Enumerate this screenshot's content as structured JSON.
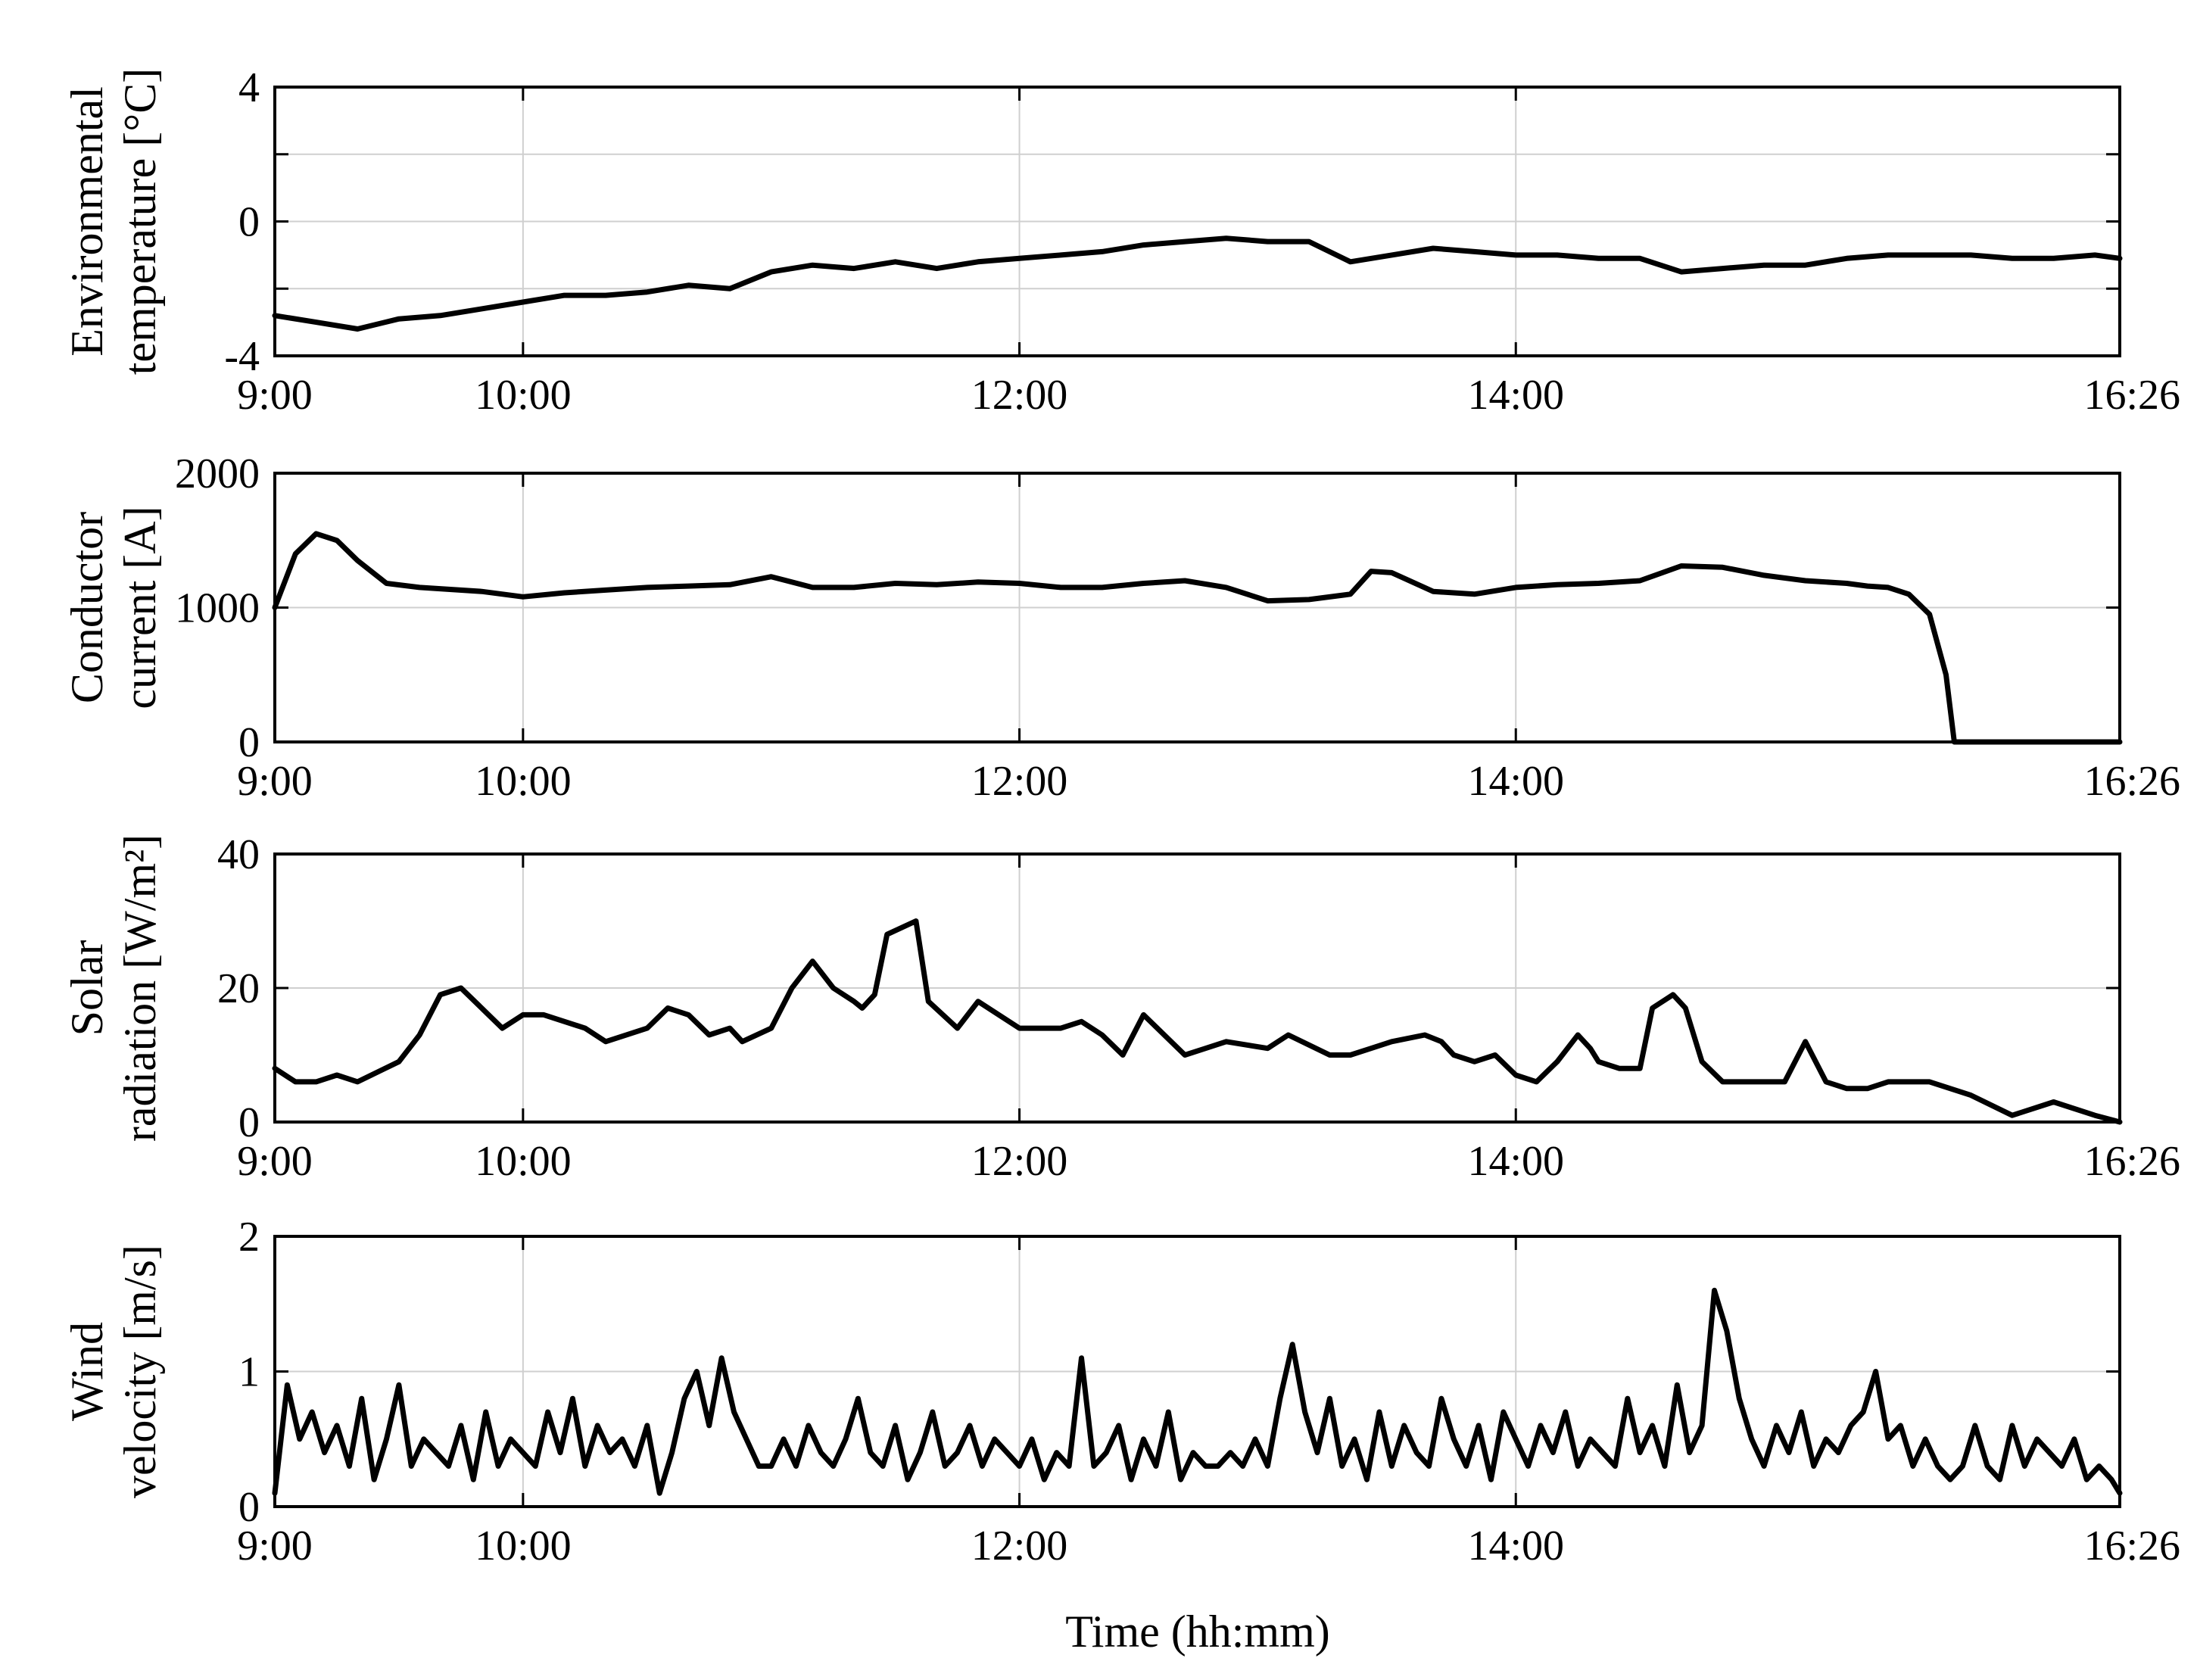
{
  "x_axis_label": "Time (hh:mm)",
  "chart_data": [
    {
      "type": "line",
      "ylabel_lines": [
        "Environmental",
        "temperature [°C]"
      ],
      "ylim": [
        -4,
        4
      ],
      "yticks": [
        -4,
        0,
        4
      ],
      "ygrid": [
        -4,
        -2,
        0,
        2,
        4
      ],
      "xtick_labels": [
        "9:00",
        "10:00",
        "12:00",
        "14:00",
        "16:26"
      ],
      "xticks_min": [
        0,
        60,
        180,
        300,
        446
      ],
      "grid": true,
      "series": [
        {
          "x": [
            0,
            10,
            20,
            30,
            40,
            50,
            60,
            70,
            80,
            90,
            100,
            110,
            120,
            130,
            140,
            150,
            160,
            170,
            180,
            190,
            200,
            210,
            220,
            230,
            240,
            250,
            260,
            270,
            280,
            290,
            300,
            310,
            320,
            330,
            340,
            350,
            360,
            370,
            380,
            390,
            400,
            410,
            420,
            430,
            440,
            446
          ],
          "y": [
            -2.8,
            -3.0,
            -3.2,
            -2.9,
            -2.8,
            -2.6,
            -2.4,
            -2.2,
            -2.2,
            -2.1,
            -1.9,
            -2.0,
            -1.5,
            -1.3,
            -1.4,
            -1.2,
            -1.4,
            -1.2,
            -1.1,
            -1.0,
            -0.9,
            -0.7,
            -0.6,
            -0.5,
            -0.6,
            -0.6,
            -1.2,
            -1.0,
            -0.8,
            -0.9,
            -1.0,
            -1.0,
            -1.1,
            -1.1,
            -1.5,
            -1.4,
            -1.3,
            -1.3,
            -1.1,
            -1.0,
            -1.0,
            -1.0,
            -1.1,
            -1.1,
            -1.0,
            -1.1
          ]
        }
      ]
    },
    {
      "type": "line",
      "ylabel_lines": [
        "Conductor",
        "current [A]"
      ],
      "ylim": [
        0,
        2000
      ],
      "yticks": [
        0,
        1000,
        2000
      ],
      "ygrid": [
        0,
        1000,
        2000
      ],
      "xtick_labels": [
        "9:00",
        "10:00",
        "12:00",
        "14:00",
        "16:26"
      ],
      "xticks_min": [
        0,
        60,
        180,
        300,
        446
      ],
      "grid": true,
      "series": [
        {
          "x": [
            0,
            5,
            10,
            15,
            20,
            27,
            35,
            50,
            60,
            70,
            80,
            90,
            100,
            110,
            120,
            130,
            140,
            150,
            160,
            170,
            180,
            190,
            200,
            210,
            220,
            230,
            240,
            250,
            260,
            265,
            270,
            280,
            290,
            300,
            310,
            320,
            330,
            340,
            350,
            360,
            370,
            380,
            385,
            390,
            395,
            400,
            404,
            406,
            420,
            446
          ],
          "y": [
            1000,
            1400,
            1550,
            1500,
            1350,
            1180,
            1150,
            1120,
            1080,
            1110,
            1130,
            1150,
            1160,
            1170,
            1230,
            1150,
            1150,
            1180,
            1170,
            1190,
            1180,
            1150,
            1150,
            1180,
            1200,
            1150,
            1050,
            1060,
            1100,
            1270,
            1260,
            1120,
            1100,
            1150,
            1170,
            1180,
            1200,
            1310,
            1300,
            1240,
            1200,
            1180,
            1160,
            1150,
            1100,
            950,
            500,
            0,
            0,
            0
          ]
        }
      ]
    },
    {
      "type": "line",
      "ylabel_lines": [
        "Solar",
        "radiation [W/m²]"
      ],
      "ylim": [
        0,
        40
      ],
      "yticks": [
        0,
        20,
        40
      ],
      "ygrid": [
        0,
        20,
        40
      ],
      "xtick_labels": [
        "9:00",
        "10:00",
        "12:00",
        "14:00",
        "16:26"
      ],
      "xticks_min": [
        0,
        60,
        180,
        300,
        446
      ],
      "grid": true,
      "series": [
        {
          "x": [
            0,
            5,
            10,
            15,
            20,
            30,
            35,
            40,
            45,
            50,
            55,
            60,
            65,
            75,
            80,
            90,
            95,
            100,
            105,
            110,
            113,
            120,
            125,
            130,
            135,
            140,
            142,
            145,
            148,
            155,
            158,
            165,
            170,
            180,
            190,
            195,
            200,
            205,
            210,
            220,
            225,
            230,
            240,
            245,
            255,
            260,
            265,
            270,
            278,
            282,
            285,
            290,
            295,
            300,
            305,
            310,
            315,
            318,
            320,
            325,
            330,
            333,
            338,
            341,
            345,
            350,
            360,
            365,
            370,
            375,
            380,
            385,
            390,
            395,
            400,
            410,
            420,
            430,
            440,
            446
          ],
          "y": [
            8,
            6,
            6,
            7,
            6,
            9,
            13,
            19,
            20,
            17,
            14,
            16,
            16,
            14,
            12,
            14,
            17,
            16,
            13,
            14,
            12,
            14,
            20,
            24,
            20,
            18,
            17,
            19,
            28,
            30,
            18,
            14,
            18,
            14,
            14,
            15,
            13,
            10,
            16,
            10,
            11,
            12,
            11,
            13,
            10,
            10,
            11,
            12,
            13,
            12,
            10,
            9,
            10,
            7,
            6,
            9,
            13,
            11,
            9,
            8,
            8,
            17,
            19,
            17,
            9,
            6,
            6,
            6,
            12,
            6,
            5,
            5,
            6,
            6,
            6,
            4,
            1,
            3,
            1,
            0
          ]
        }
      ]
    },
    {
      "type": "line",
      "ylabel_lines": [
        "Wind",
        "velocity [m/s]"
      ],
      "ylim": [
        0,
        2
      ],
      "yticks": [
        0,
        1,
        2
      ],
      "ygrid": [
        0,
        1,
        2
      ],
      "xtick_labels": [
        "9:00",
        "10:00",
        "12:00",
        "14:00",
        "16:26"
      ],
      "xticks_min": [
        0,
        60,
        180,
        300,
        446
      ],
      "grid": true,
      "series": [
        {
          "x": [
            0,
            3,
            6,
            9,
            12,
            15,
            18,
            21,
            24,
            27,
            30,
            33,
            36,
            39,
            42,
            45,
            48,
            51,
            54,
            57,
            60,
            63,
            66,
            69,
            72,
            75,
            78,
            81,
            84,
            87,
            90,
            93,
            96,
            99,
            102,
            105,
            108,
            111,
            114,
            117,
            120,
            123,
            126,
            129,
            132,
            135,
            138,
            141,
            144,
            147,
            150,
            153,
            156,
            159,
            162,
            165,
            168,
            171,
            174,
            177,
            180,
            183,
            186,
            189,
            192,
            195,
            198,
            201,
            204,
            207,
            210,
            213,
            216,
            219,
            222,
            225,
            228,
            231,
            234,
            237,
            240,
            243,
            246,
            249,
            252,
            255,
            258,
            261,
            264,
            267,
            270,
            273,
            276,
            279,
            282,
            285,
            288,
            291,
            294,
            297,
            300,
            303,
            306,
            309,
            312,
            315,
            318,
            321,
            324,
            327,
            330,
            333,
            336,
            339,
            342,
            345,
            348,
            351,
            354,
            357,
            360,
            363,
            366,
            369,
            372,
            375,
            378,
            381,
            384,
            387,
            390,
            393,
            396,
            399,
            402,
            405,
            408,
            411,
            414,
            417,
            420,
            423,
            426,
            429,
            432,
            435,
            438,
            441,
            444,
            446
          ],
          "y": [
            0.1,
            0.9,
            0.5,
            0.7,
            0.4,
            0.6,
            0.3,
            0.8,
            0.2,
            0.5,
            0.9,
            0.3,
            0.5,
            0.4,
            0.3,
            0.6,
            0.2,
            0.7,
            0.3,
            0.5,
            0.4,
            0.3,
            0.7,
            0.4,
            0.8,
            0.3,
            0.6,
            0.4,
            0.5,
            0.3,
            0.6,
            0.1,
            0.4,
            0.8,
            1.0,
            0.6,
            1.1,
            0.7,
            0.5,
            0.3,
            0.3,
            0.5,
            0.3,
            0.6,
            0.4,
            0.3,
            0.5,
            0.8,
            0.4,
            0.3,
            0.6,
            0.2,
            0.4,
            0.7,
            0.3,
            0.4,
            0.6,
            0.3,
            0.5,
            0.4,
            0.3,
            0.5,
            0.2,
            0.4,
            0.3,
            1.1,
            0.3,
            0.4,
            0.6,
            0.2,
            0.5,
            0.3,
            0.7,
            0.2,
            0.4,
            0.3,
            0.3,
            0.4,
            0.3,
            0.5,
            0.3,
            0.8,
            1.2,
            0.7,
            0.4,
            0.8,
            0.3,
            0.5,
            0.2,
            0.7,
            0.3,
            0.6,
            0.4,
            0.3,
            0.8,
            0.5,
            0.3,
            0.6,
            0.2,
            0.7,
            0.5,
            0.3,
            0.6,
            0.4,
            0.7,
            0.3,
            0.5,
            0.4,
            0.3,
            0.8,
            0.4,
            0.6,
            0.3,
            0.9,
            0.4,
            0.6,
            1.6,
            1.3,
            0.8,
            0.5,
            0.3,
            0.6,
            0.4,
            0.7,
            0.3,
            0.5,
            0.4,
            0.6,
            0.7,
            1.0,
            0.5,
            0.6,
            0.3,
            0.5,
            0.3,
            0.2,
            0.3,
            0.6,
            0.3,
            0.2,
            0.6,
            0.3,
            0.5,
            0.4,
            0.3,
            0.5,
            0.2,
            0.3,
            0.2,
            0.1
          ]
        }
      ]
    }
  ]
}
